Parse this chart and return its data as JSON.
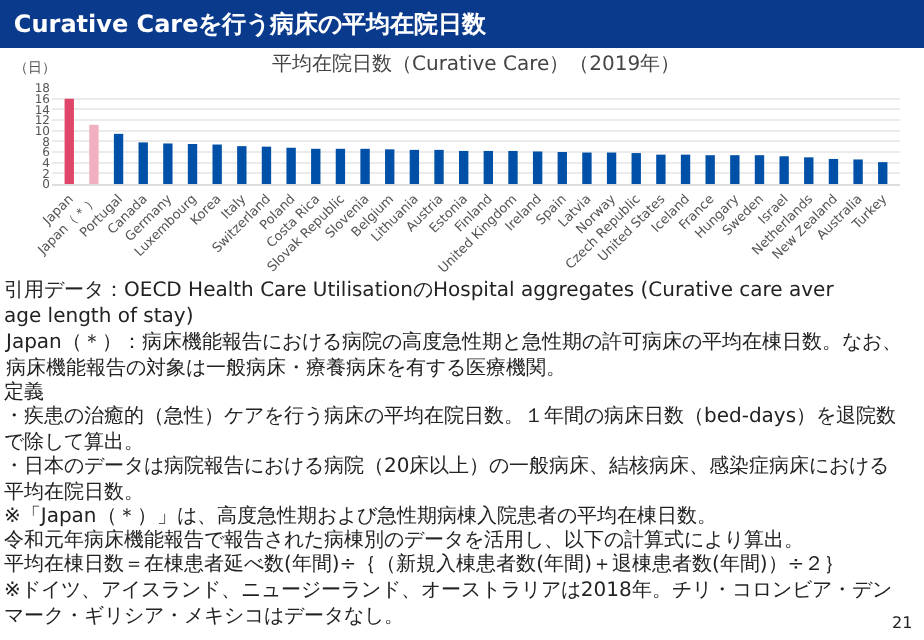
{
  "chart_data": {
    "type": "bar",
    "title": "Curative Careを行う病床の平均在院日数",
    "subtitle": "平均在院日数（Curative Care）（2019年）",
    "ylabel": "（日）",
    "categories": [
      "Japan",
      "Japan（＊）",
      "Portugal",
      "Canada",
      "Germany",
      "Luxembourg",
      "Korea",
      "Italy",
      "Switzerland",
      "Poland",
      "Costa Rica",
      "Slovak Republic",
      "Slovenia",
      "Belgium",
      "Lithuania",
      "Austria",
      "Estonia",
      "Finland",
      "United Kingdom",
      "Ireland",
      "Spain",
      "Latvia",
      "Norway",
      "Czech Republic",
      "United States",
      "Iceland",
      "France",
      "Hungary",
      "Sweden",
      "Israel",
      "Netherlands",
      "New Zealand",
      "Australia",
      "Turkey"
    ],
    "values": [
      16.0,
      11.1,
      9.4,
      7.8,
      7.6,
      7.5,
      7.4,
      7.1,
      7.0,
      6.8,
      6.6,
      6.6,
      6.6,
      6.5,
      6.4,
      6.4,
      6.2,
      6.2,
      6.2,
      6.1,
      6.0,
      5.9,
      5.9,
      5.8,
      5.5,
      5.5,
      5.4,
      5.4,
      5.4,
      5.2,
      5.0,
      4.7,
      4.6,
      4.1
    ],
    "colors": [
      "#e0466a",
      "#f1b0c0",
      "#0050a8",
      "#0050a8",
      "#0050a8",
      "#0050a8",
      "#0050a8",
      "#0050a8",
      "#0050a8",
      "#0050a8",
      "#0050a8",
      "#0050a8",
      "#0050a8",
      "#0050a8",
      "#0050a8",
      "#0050a8",
      "#0050a8",
      "#0050a8",
      "#0050a8",
      "#0050a8",
      "#0050a8",
      "#0050a8",
      "#0050a8",
      "#0050a8",
      "#0050a8",
      "#0050a8",
      "#0050a8",
      "#0050a8",
      "#0050a8",
      "#0050a8",
      "#0050a8",
      "#0050a8",
      "#0050a8",
      "#0050a8"
    ],
    "ylim": [
      0,
      18
    ],
    "yticks": [
      0,
      2,
      4,
      6,
      8,
      10,
      12,
      14,
      16,
      18
    ],
    "grid": "y",
    "legend": false,
    "annotations": [
      "引用データ：OECD Health Care UtilisationのHospital aggregates (Curative care average length of stay)",
      "Japan（＊）：病床機能報告における病院の高度急性期と急性期の許可病床の平均在棟日数。なお、病床機能報告の対象は一般病床・療養病床を有する医療機関。",
      "定義",
      "・疾患の治癒的（急性）ケアを行う病床の平均在院日数。１年間の病床日数（bed-days）を退院数で除して算出。",
      "・日本のデータは病院報告における病院（20床以上）の一般病床、結核病床、感染症病床における平均在院日数。",
      "※「Japan（＊）」は、高度急性期および急性期病棟入院患者の平均在棟日数。",
      "令和元年病床機能報告で報告された病棟別のデータを活用し、以下の計算式により算出。",
      "平均在棟日数＝在棟患者延べ数(年間)÷｛（新規入棟患者数(年間)＋退棟患者数(年間)）÷２｝",
      "※ドイツ、アイスランド、ニュージーランド、オーストラリアは2018年。チリ・コロンビア・デンマーク・ギリシア・メキシコはデータなし。",
      "21"
    ]
  }
}
